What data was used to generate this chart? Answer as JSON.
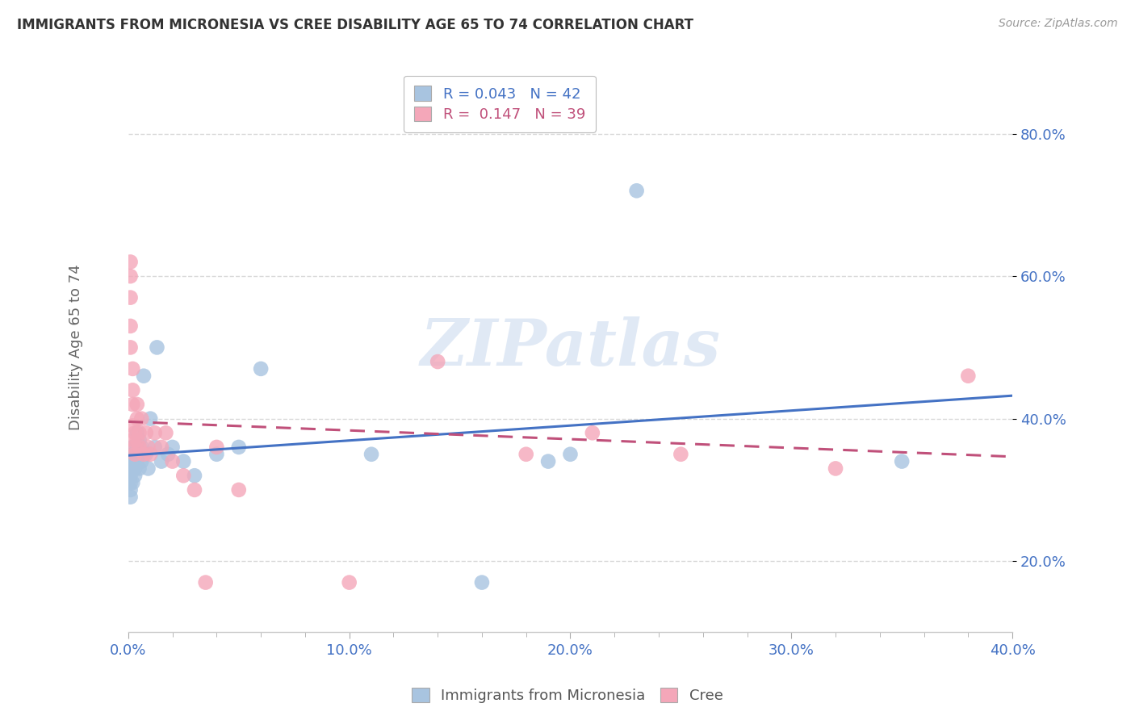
{
  "title": "IMMIGRANTS FROM MICRONESIA VS CREE DISABILITY AGE 65 TO 74 CORRELATION CHART",
  "source": "Source: ZipAtlas.com",
  "ylabel": "Disability Age 65 to 74",
  "xlim": [
    0.0,
    0.4
  ],
  "ylim": [
    0.1,
    0.9
  ],
  "xtick_labels": [
    "0.0%",
    "",
    "",
    "",
    "",
    "10.0%",
    "",
    "",
    "",
    "",
    "20.0%",
    "",
    "",
    "",
    "",
    "30.0%",
    "",
    "",
    "",
    "",
    "40.0%"
  ],
  "xtick_vals": [
    0.0,
    0.02,
    0.04,
    0.06,
    0.08,
    0.1,
    0.12,
    0.14,
    0.16,
    0.18,
    0.2,
    0.22,
    0.24,
    0.26,
    0.28,
    0.3,
    0.32,
    0.34,
    0.36,
    0.38,
    0.4
  ],
  "ytick_labels": [
    "20.0%",
    "40.0%",
    "60.0%",
    "80.0%"
  ],
  "ytick_vals": [
    0.2,
    0.4,
    0.6,
    0.8
  ],
  "legend1_label": "R = 0.043   N = 42",
  "legend2_label": "R =  0.147   N = 39",
  "micronesia_color": "#a8c4e0",
  "cree_color": "#f4a7b9",
  "micronesia_line_color": "#4472c4",
  "cree_line_color": "#c0507a",
  "watermark": "ZIPatlas",
  "micronesia_x": [
    0.001,
    0.001,
    0.001,
    0.001,
    0.001,
    0.002,
    0.002,
    0.002,
    0.002,
    0.002,
    0.003,
    0.003,
    0.003,
    0.003,
    0.004,
    0.004,
    0.004,
    0.005,
    0.005,
    0.005,
    0.006,
    0.006,
    0.007,
    0.008,
    0.009,
    0.01,
    0.012,
    0.013,
    0.015,
    0.018,
    0.02,
    0.025,
    0.03,
    0.04,
    0.05,
    0.06,
    0.11,
    0.16,
    0.19,
    0.2,
    0.23,
    0.35
  ],
  "micronesia_y": [
    0.33,
    0.32,
    0.31,
    0.3,
    0.29,
    0.36,
    0.35,
    0.34,
    0.33,
    0.31,
    0.35,
    0.34,
    0.33,
    0.32,
    0.38,
    0.36,
    0.34,
    0.37,
    0.35,
    0.33,
    0.36,
    0.34,
    0.46,
    0.35,
    0.33,
    0.4,
    0.36,
    0.5,
    0.34,
    0.35,
    0.36,
    0.34,
    0.32,
    0.35,
    0.36,
    0.47,
    0.35,
    0.17,
    0.34,
    0.35,
    0.72,
    0.34
  ],
  "cree_x": [
    0.001,
    0.001,
    0.001,
    0.001,
    0.001,
    0.002,
    0.002,
    0.002,
    0.002,
    0.002,
    0.003,
    0.003,
    0.003,
    0.004,
    0.004,
    0.004,
    0.005,
    0.005,
    0.006,
    0.007,
    0.008,
    0.009,
    0.01,
    0.012,
    0.015,
    0.017,
    0.02,
    0.025,
    0.03,
    0.035,
    0.04,
    0.05,
    0.1,
    0.14,
    0.18,
    0.21,
    0.25,
    0.32,
    0.38
  ],
  "cree_y": [
    0.62,
    0.6,
    0.57,
    0.53,
    0.5,
    0.47,
    0.44,
    0.42,
    0.39,
    0.37,
    0.38,
    0.36,
    0.35,
    0.42,
    0.4,
    0.37,
    0.38,
    0.36,
    0.4,
    0.35,
    0.38,
    0.36,
    0.35,
    0.38,
    0.36,
    0.38,
    0.34,
    0.32,
    0.3,
    0.17,
    0.36,
    0.3,
    0.17,
    0.48,
    0.35,
    0.38,
    0.35,
    0.33,
    0.46
  ],
  "background_color": "#ffffff",
  "grid_color": "#d8d8d8"
}
